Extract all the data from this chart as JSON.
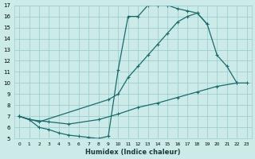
{
  "xlabel": "Humidex (Indice chaleur)",
  "xlim": [
    -0.5,
    23.5
  ],
  "ylim": [
    5,
    17
  ],
  "xticks": [
    0,
    1,
    2,
    3,
    4,
    5,
    6,
    7,
    8,
    9,
    10,
    11,
    12,
    13,
    14,
    15,
    16,
    17,
    18,
    19,
    20,
    21,
    22,
    23
  ],
  "yticks": [
    5,
    6,
    7,
    8,
    9,
    10,
    11,
    12,
    13,
    14,
    15,
    16,
    17
  ],
  "bg_color": "#cceae8",
  "line_color": "#1a6b6b",
  "grid_color": "#9ecece",
  "line1_x": [
    0,
    1,
    2,
    3,
    4,
    5,
    6,
    7,
    8,
    9,
    10,
    11,
    12,
    13,
    14,
    15,
    16,
    17,
    18,
    19
  ],
  "line1_y": [
    7.0,
    6.7,
    6.0,
    5.8,
    5.5,
    5.3,
    5.2,
    5.1,
    5.0,
    5.2,
    11.2,
    16.0,
    16.0,
    17.0,
    17.0,
    17.0,
    16.7,
    16.5,
    16.3,
    15.3
  ],
  "line2_x": [
    0,
    2,
    9,
    10,
    11,
    12,
    13,
    14,
    15,
    16,
    17,
    18,
    19,
    20,
    21,
    22
  ],
  "line2_y": [
    7.0,
    6.5,
    8.5,
    9.0,
    10.5,
    11.5,
    12.5,
    13.5,
    14.5,
    15.5,
    16.0,
    16.3,
    15.3,
    12.5,
    11.5,
    10.0
  ],
  "line3_x": [
    0,
    1,
    3,
    5,
    8,
    10,
    12,
    14,
    16,
    18,
    20,
    22,
    23
  ],
  "line3_y": [
    7.0,
    6.7,
    6.5,
    6.3,
    6.7,
    7.2,
    7.8,
    8.2,
    8.7,
    9.2,
    9.7,
    10.0,
    10.0
  ]
}
